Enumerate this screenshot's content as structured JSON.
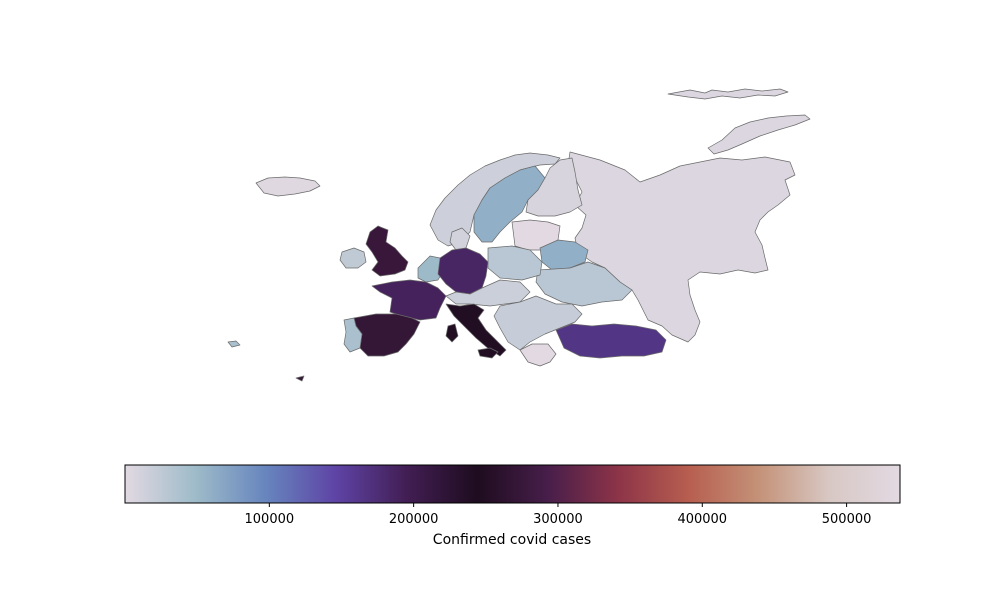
{
  "map": {
    "type": "choropleth",
    "region": "Europe",
    "value_label": "Confirmed covid cases",
    "colormap": "twilight",
    "color_range": [
      0,
      537000
    ],
    "colormap_stops": [
      "#e2d9e2",
      "#9ebbc9",
      "#6785be",
      "#5e43a5",
      "#421e53",
      "#1e0c1f",
      "#471e4a",
      "#8d3448",
      "#b75e50",
      "#c49278",
      "#d8c8c4",
      "#e2d9e2"
    ],
    "outline_color": "#6a6a6a"
  },
  "colorbar": {
    "label": "Confirmed covid cases",
    "ticks": [
      {
        "value": 100000,
        "label": "100000"
      },
      {
        "value": 200000,
        "label": "200000"
      },
      {
        "value": 300000,
        "label": "300000"
      },
      {
        "value": 400000,
        "label": "400000"
      },
      {
        "value": 500000,
        "label": "500000"
      }
    ]
  },
  "countries": [
    {
      "name": "Russia",
      "cases_approx": 5000
    },
    {
      "name": "Iceland",
      "cases_approx": 2000
    },
    {
      "name": "Norway",
      "cases_approx": 15000
    },
    {
      "name": "Sweden",
      "cases_approx": 60000
    },
    {
      "name": "Finland",
      "cases_approx": 8000
    },
    {
      "name": "United Kingdom",
      "cases_approx": 275000
    },
    {
      "name": "Ireland",
      "cases_approx": 25000
    },
    {
      "name": "France",
      "cases_approx": 190000
    },
    {
      "name": "Spain",
      "cases_approx": 270000
    },
    {
      "name": "Portugal",
      "cases_approx": 40000
    },
    {
      "name": "Germany",
      "cases_approx": 185000
    },
    {
      "name": "Italy",
      "cases_approx": 240000
    },
    {
      "name": "Belarus",
      "cases_approx": 60000
    },
    {
      "name": "Ukraine",
      "cases_approx": 30000
    },
    {
      "name": "Poland",
      "cases_approx": 30000
    },
    {
      "name": "Turkey",
      "cases_approx": 165000
    },
    {
      "name": "Netherlands",
      "cases_approx": 50000
    },
    {
      "name": "Belgium",
      "cases_approx": 60000
    },
    {
      "name": "Romania",
      "cases_approx": 20000
    },
    {
      "name": "Switzerland",
      "cases_approx": 30000
    },
    {
      "name": "Austria",
      "cases_approx": 17000
    },
    {
      "name": "Denmark",
      "cases_approx": 12000
    }
  ]
}
